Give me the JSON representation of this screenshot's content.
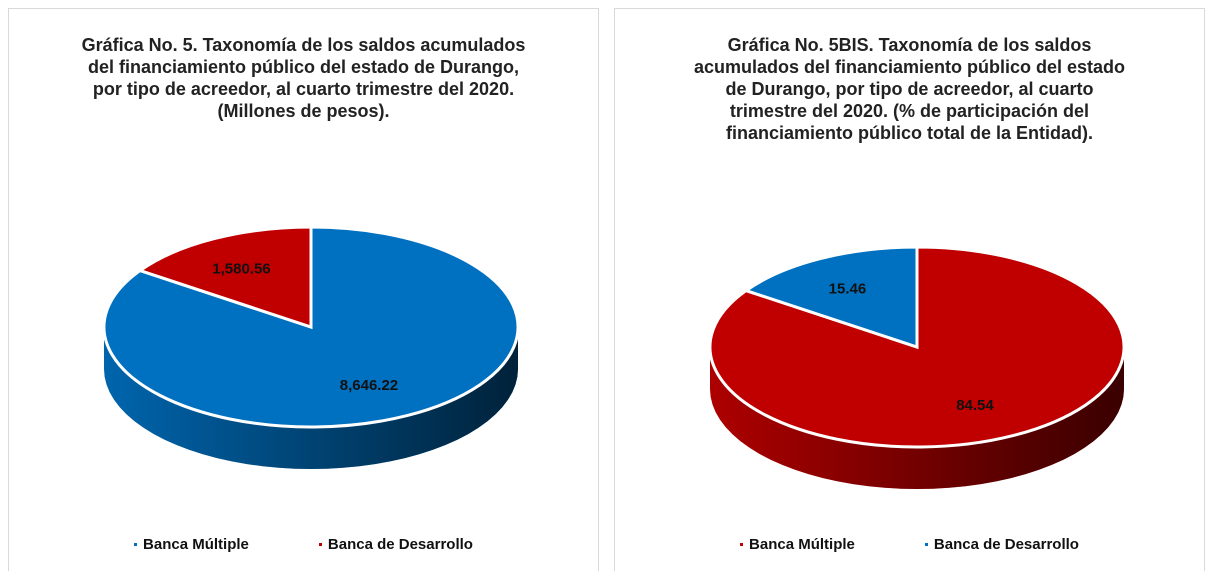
{
  "chart_data": [
    {
      "type": "pie",
      "title": "Gráfica No. 5. Taxonomía de los saldos acumulados del financiamiento público del estado de Durango, por tipo de acreedor, al cuarto trimestre del 2020. (Millones de pesos).",
      "categories": [
        "Banca Múltiple",
        "Banca de Desarrollo"
      ],
      "values": [
        8646.22,
        1580.56
      ],
      "value_labels": [
        "8,646.22",
        "1,580.56"
      ],
      "colors": [
        "#0070c0",
        "#c00000"
      ],
      "legend": "bottom"
    },
    {
      "type": "pie",
      "title": "Gráfica No. 5BIS. Taxonomía de los saldos acumulados del financiamiento público del estado de Durango, por tipo de acreedor, al cuarto trimestre del 2020. (% de participación del financiamiento público total de la Entidad).",
      "categories": [
        "Banca Múltiple",
        "Banca de Desarrollo"
      ],
      "values": [
        84.54,
        15.46
      ],
      "colors": [
        "#c00000",
        "#0070c0"
      ],
      "legend": "bottom"
    }
  ]
}
